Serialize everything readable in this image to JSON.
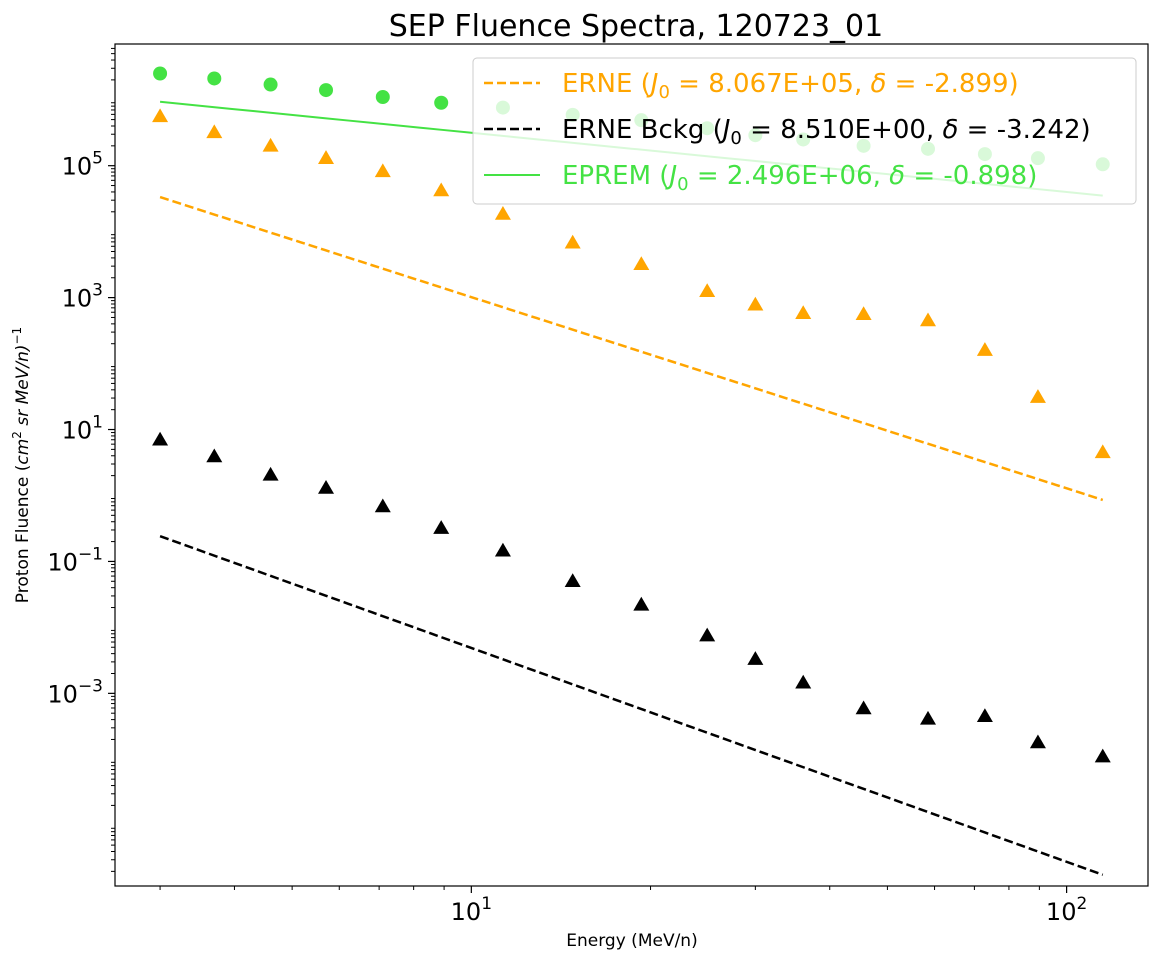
{
  "chart_data": {
    "type": "scatter",
    "title": "SEP Fluence Spectra, 120723_01",
    "xlabel": "Energy (MeV/n)",
    "ylabel": {
      "prefix": "Proton Fluence (",
      "cm": "cm",
      "cm_exp": "2",
      "rest": " sr MeV/n)",
      "exp": "−1"
    },
    "x_scale": "log",
    "y_scale": "log",
    "xlim": [
      2.52,
      137
    ],
    "ylim": [
      1.2e-06,
      7000000
    ],
    "x_ticks": [
      {
        "value": 10,
        "base": "10",
        "exp": "1"
      },
      {
        "value": 100,
        "base": "10",
        "exp": "2"
      }
    ],
    "y_ticks": [
      {
        "value": 0.001,
        "base": "10",
        "exp": "−3"
      },
      {
        "value": 0.1,
        "base": "10",
        "exp": "−1"
      },
      {
        "value": 10,
        "base": "10",
        "exp": "1"
      },
      {
        "value": 1000,
        "base": "10",
        "exp": "3"
      },
      {
        "value": 100000,
        "base": "10",
        "exp": "5"
      }
    ],
    "grid": false,
    "legend_position": "top-right",
    "x": [
      3.0,
      3.7,
      4.6,
      5.7,
      7.1,
      8.9,
      11.3,
      14.8,
      19.3,
      24.9,
      30.0,
      36.1,
      45.6,
      58.5,
      72.9,
      89.5,
      115.0
    ],
    "series": [
      {
        "name": "EPREM",
        "legend": {
          "prefix": "EPREM (",
          "J0_value": "2.496E+06",
          "delta_value": "-0.898",
          "suffix": ")"
        },
        "color": "#44e244",
        "marker": "circle",
        "fit_style": "solid",
        "values": [
          2500000,
          2100000,
          1700000,
          1400000,
          1100000,
          900000,
          760000,
          590000,
          490000,
          370000,
          290000,
          250000,
          200000,
          180000,
          150000,
          130000,
          105000
        ],
        "fit": {
          "J0": 2496000,
          "delta": -0.898,
          "x_range": [
            3.0,
            115.0
          ]
        }
      },
      {
        "name": "ERNE",
        "legend": {
          "prefix": "ERNE (",
          "J0_value": "8.067E+05",
          "delta_value": "-2.899",
          "suffix": ")"
        },
        "color": "#ffa500",
        "marker": "triangle",
        "fit_style": "dashed",
        "values": [
          560000,
          320000,
          200000,
          130000,
          82000,
          42000,
          18500,
          6800,
          3200,
          1250,
          780,
          580,
          560,
          450,
          160,
          31,
          4.5
        ],
        "fit": {
          "J0": 806700,
          "delta": -2.899,
          "x_range": [
            3.0,
            115.0
          ]
        }
      },
      {
        "name": "ERNE Bckg",
        "legend": {
          "prefix": "ERNE Bckg (",
          "J0_value": "8.510E+00",
          "delta_value": "-3.242",
          "suffix": ")"
        },
        "color": "#000000",
        "marker": "triangle",
        "fit_style": "dashed",
        "values": [
          7.0,
          3.9,
          2.05,
          1.3,
          0.68,
          0.32,
          0.145,
          0.05,
          0.022,
          0.0075,
          0.0033,
          0.00145,
          0.00059,
          0.00041,
          0.00045,
          0.00018,
          0.00011
        ],
        "fit": {
          "J0": 8.51,
          "delta": -3.242,
          "x_range": [
            3.0,
            115.0
          ]
        }
      }
    ],
    "legend_order": [
      1,
      2,
      0
    ]
  }
}
